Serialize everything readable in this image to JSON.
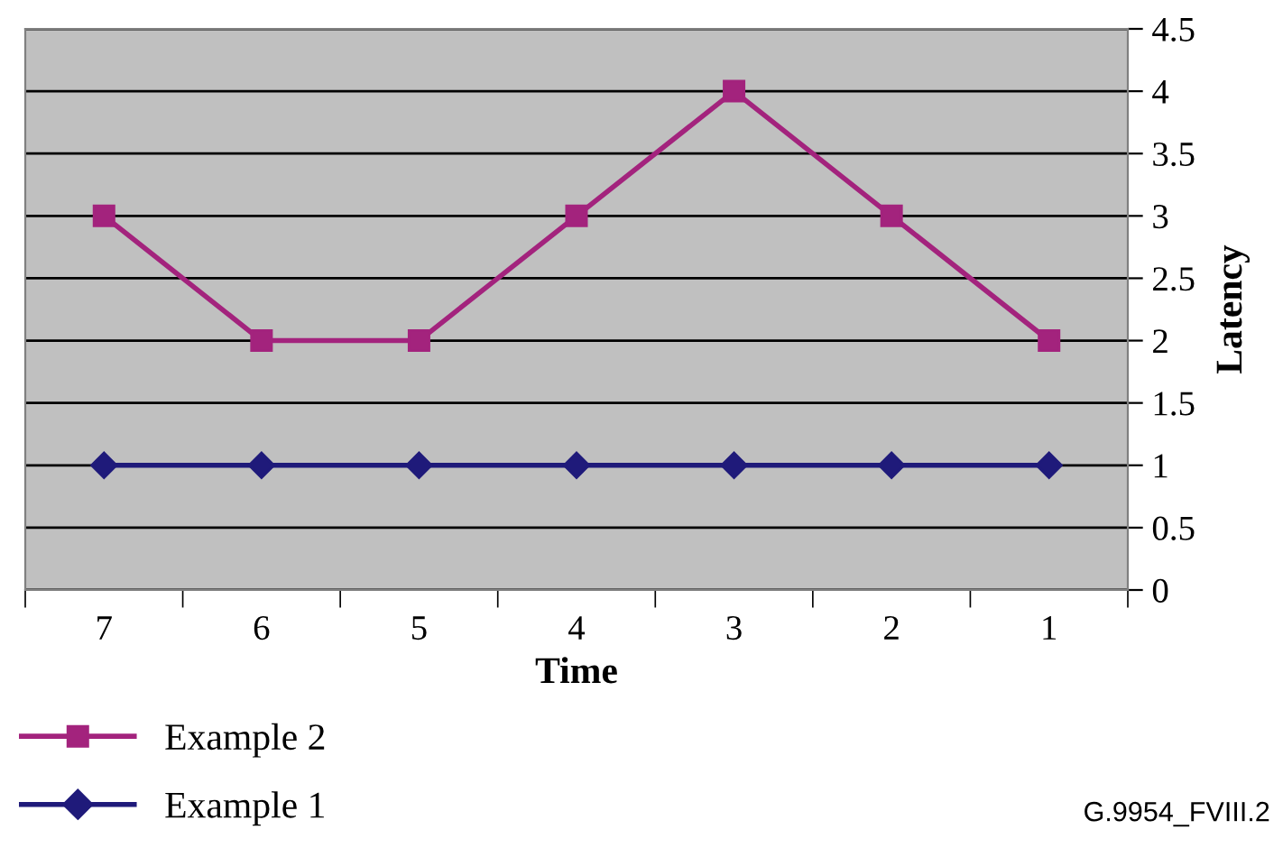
{
  "chart_data": {
    "type": "line",
    "xlabel": "Time",
    "ylabel": "Latency",
    "categories": [
      "7",
      "6",
      "5",
      "4",
      "3",
      "2",
      "1"
    ],
    "series": [
      {
        "name": "Example 2",
        "color": "#a3237d",
        "marker": "square",
        "values": [
          3,
          2,
          2,
          3,
          4,
          3,
          2
        ]
      },
      {
        "name": "Example 1",
        "color": "#1f1a7a",
        "marker": "diamond",
        "values": [
          1,
          1,
          1,
          1,
          1,
          1,
          1
        ]
      }
    ],
    "ylim": [
      0,
      4.5
    ],
    "yticks": [
      0,
      0.5,
      1,
      1.5,
      2,
      2.5,
      3,
      3.5,
      4,
      4.5
    ],
    "grid": "y",
    "legend": "bottom left",
    "line_style": "solid",
    "annotations": [
      "G.9954_FVIII.2"
    ]
  }
}
